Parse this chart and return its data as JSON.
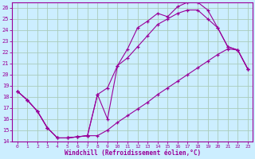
{
  "xlabel": "Windchill (Refroidissement éolien,°C)",
  "background_color": "#cceeff",
  "grid_color": "#aaccbb",
  "line_color": "#990099",
  "xlim": [
    -0.5,
    23.5
  ],
  "ylim": [
    14,
    26.5
  ],
  "yticks": [
    14,
    15,
    16,
    17,
    18,
    19,
    20,
    21,
    22,
    23,
    24,
    25,
    26
  ],
  "xticks": [
    0,
    1,
    2,
    3,
    4,
    5,
    6,
    7,
    8,
    9,
    10,
    11,
    12,
    13,
    14,
    15,
    16,
    17,
    18,
    19,
    20,
    21,
    22,
    23
  ],
  "line1_x": [
    0,
    1,
    2,
    3,
    4,
    5,
    6,
    7,
    8,
    9,
    10,
    11,
    12,
    13,
    14,
    15,
    16,
    17,
    18,
    19,
    20,
    21,
    22,
    23
  ],
  "line1_y": [
    18.5,
    17.7,
    16.7,
    15.2,
    14.3,
    14.3,
    14.4,
    14.5,
    18.2,
    16.0,
    20.8,
    22.3,
    24.2,
    24.8,
    25.5,
    25.2,
    26.1,
    26.5,
    26.5,
    25.8,
    24.2,
    22.5,
    22.2,
    20.5
  ],
  "line2_x": [
    0,
    1,
    2,
    3,
    4,
    5,
    6,
    7,
    8,
    9,
    10,
    11,
    12,
    13,
    14,
    15,
    16,
    17,
    18,
    19,
    20,
    21,
    22,
    23
  ],
  "line2_y": [
    18.5,
    17.7,
    16.7,
    15.2,
    14.3,
    14.3,
    14.4,
    14.5,
    14.5,
    15.0,
    15.7,
    16.3,
    16.9,
    17.5,
    18.2,
    18.8,
    19.4,
    20.0,
    20.6,
    21.2,
    21.8,
    22.3,
    22.2,
    20.5
  ],
  "line3_x": [
    0,
    1,
    2,
    3,
    4,
    5,
    6,
    7,
    8,
    9,
    10,
    11,
    12,
    13,
    14,
    15,
    16,
    17,
    18,
    19,
    20,
    21,
    22,
    23
  ],
  "line3_y": [
    18.5,
    17.7,
    16.7,
    15.2,
    14.3,
    14.3,
    14.4,
    14.5,
    18.2,
    18.8,
    20.8,
    21.5,
    22.5,
    23.5,
    24.5,
    25.0,
    25.5,
    25.8,
    25.8,
    25.0,
    24.2,
    22.5,
    22.2,
    20.5
  ]
}
